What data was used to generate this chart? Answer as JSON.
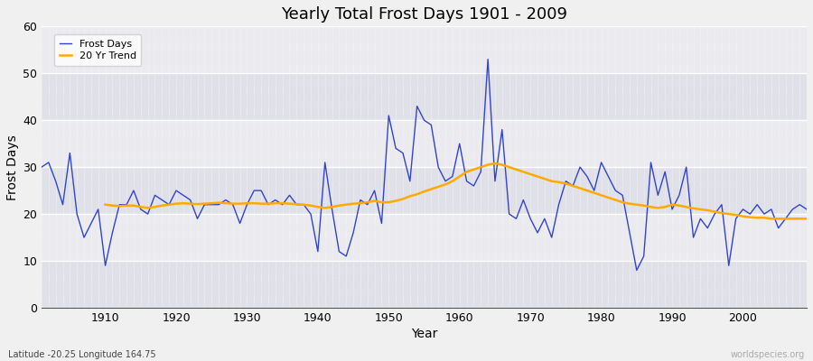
{
  "title": "Yearly Total Frost Days 1901 - 2009",
  "xlabel": "Year",
  "ylabel": "Frost Days",
  "footnote_left": "Latitude -20.25 Longitude 164.75",
  "footnote_right": "worldspecies.org",
  "legend_labels": [
    "Frost Days",
    "20 Yr Trend"
  ],
  "line_color": "#3344cc",
  "trend_color": "#ffaa00",
  "ylim": [
    0,
    60
  ],
  "xlim": [
    1901,
    2009
  ],
  "yticks": [
    0,
    10,
    20,
    30,
    40,
    50,
    60
  ],
  "xticks": [
    1910,
    1920,
    1930,
    1940,
    1950,
    1960,
    1970,
    1980,
    1990,
    2000
  ],
  "years": [
    1901,
    1902,
    1903,
    1904,
    1905,
    1906,
    1907,
    1908,
    1909,
    1910,
    1911,
    1912,
    1913,
    1914,
    1915,
    1916,
    1917,
    1918,
    1919,
    1920,
    1921,
    1922,
    1923,
    1924,
    1925,
    1926,
    1927,
    1928,
    1929,
    1930,
    1931,
    1932,
    1933,
    1934,
    1935,
    1936,
    1937,
    1938,
    1939,
    1940,
    1941,
    1942,
    1943,
    1944,
    1945,
    1946,
    1947,
    1948,
    1949,
    1950,
    1951,
    1952,
    1953,
    1954,
    1955,
    1956,
    1957,
    1958,
    1959,
    1960,
    1961,
    1962,
    1963,
    1964,
    1965,
    1966,
    1967,
    1968,
    1969,
    1970,
    1971,
    1972,
    1973,
    1974,
    1975,
    1976,
    1977,
    1978,
    1979,
    1980,
    1981,
    1982,
    1983,
    1984,
    1985,
    1986,
    1987,
    1988,
    1989,
    1990,
    1991,
    1992,
    1993,
    1994,
    1995,
    1996,
    1997,
    1998,
    1999,
    2000,
    2001,
    2002,
    2003,
    2004,
    2005,
    2006,
    2007,
    2008,
    2009
  ],
  "frost_days": [
    30,
    31,
    27,
    22,
    33,
    20,
    15,
    18,
    21,
    9,
    16,
    22,
    22,
    25,
    21,
    20,
    24,
    23,
    22,
    25,
    24,
    23,
    19,
    22,
    22,
    22,
    23,
    22,
    18,
    22,
    25,
    25,
    22,
    23,
    22,
    24,
    22,
    22,
    20,
    12,
    31,
    21,
    12,
    11,
    16,
    23,
    22,
    25,
    18,
    41,
    34,
    33,
    27,
    43,
    40,
    39,
    30,
    27,
    28,
    35,
    27,
    26,
    29,
    53,
    27,
    38,
    20,
    19,
    23,
    19,
    16,
    19,
    15,
    22,
    27,
    26,
    30,
    28,
    25,
    31,
    28,
    25,
    24,
    16,
    8,
    11,
    31,
    24,
    29,
    21,
    24,
    30,
    15,
    19,
    17,
    20,
    22,
    9,
    19,
    21,
    20,
    22,
    20,
    21,
    17,
    19,
    21,
    22,
    21
  ],
  "trend_years": [
    1910,
    1911,
    1912,
    1913,
    1914,
    1915,
    1916,
    1917,
    1918,
    1919,
    1920,
    1921,
    1922,
    1923,
    1924,
    1925,
    1926,
    1927,
    1928,
    1929,
    1930,
    1931,
    1932,
    1933,
    1934,
    1935,
    1936,
    1937,
    1938,
    1939,
    1940,
    1941,
    1942,
    1943,
    1944,
    1945,
    1946,
    1947,
    1948,
    1949,
    1950,
    1951,
    1952,
    1953,
    1954,
    1955,
    1956,
    1957,
    1958,
    1959,
    1960,
    1961,
    1962,
    1963,
    1964,
    1965,
    1966,
    1967,
    1968,
    1969,
    1970,
    1971,
    1972,
    1973,
    1974,
    1975,
    1976,
    1977,
    1978,
    1979,
    1980,
    1981,
    1982,
    1983,
    1984,
    1985,
    1986,
    1987,
    1988,
    1989,
    1990,
    1991,
    1992,
    1993,
    1994,
    1995,
    1996,
    1997,
    1998,
    1999,
    2000,
    2001,
    2002,
    2003,
    2004,
    2005,
    2006,
    2007,
    2008,
    2009
  ],
  "trend_values": [
    22.0,
    21.8,
    21.7,
    21.8,
    21.8,
    21.5,
    21.3,
    21.5,
    21.8,
    22.0,
    22.2,
    22.3,
    22.2,
    22.1,
    22.2,
    22.3,
    22.4,
    22.3,
    22.2,
    22.2,
    22.3,
    22.3,
    22.2,
    22.2,
    22.3,
    22.3,
    22.2,
    22.1,
    22.0,
    21.8,
    21.5,
    21.3,
    21.5,
    21.8,
    22.0,
    22.2,
    22.3,
    22.5,
    22.8,
    22.5,
    22.5,
    22.8,
    23.2,
    23.8,
    24.2,
    24.8,
    25.3,
    25.8,
    26.3,
    27.0,
    28.0,
    29.0,
    29.5,
    30.0,
    30.5,
    30.8,
    30.5,
    30.0,
    29.5,
    29.0,
    28.5,
    28.0,
    27.5,
    27.0,
    26.8,
    26.5,
    26.0,
    25.5,
    25.0,
    24.5,
    24.0,
    23.5,
    23.0,
    22.5,
    22.2,
    22.0,
    21.8,
    21.5,
    21.3,
    21.5,
    22.0,
    21.8,
    21.5,
    21.2,
    21.0,
    20.8,
    20.5,
    20.2,
    20.0,
    19.8,
    19.5,
    19.3,
    19.2,
    19.2,
    19.0,
    19.0,
    19.0,
    19.0,
    19.0,
    19.0
  ]
}
